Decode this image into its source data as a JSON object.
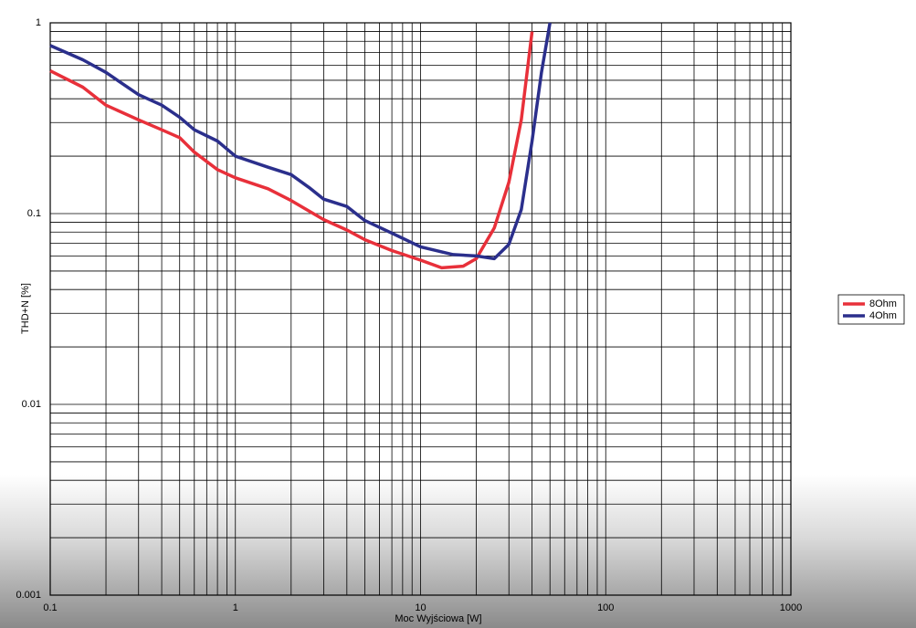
{
  "chart_data": {
    "type": "line",
    "x_label": "Moc Wyjściowa [W]",
    "y_label": "THD+N [%]",
    "x_scale": "log",
    "y_scale": "log",
    "xlim": [
      0.1,
      1000
    ],
    "xticks": [
      0.1,
      1,
      10,
      100,
      1000
    ],
    "ylim": [
      0.001,
      1
    ],
    "yticks": [
      0.001,
      0.01,
      0.1,
      1
    ],
    "grid": true,
    "minor_grid": true,
    "legend": "right",
    "series": [
      {
        "name": "8Ohm",
        "color": "#e8303a",
        "x": [
          0.1,
          0.15,
          0.2,
          0.3,
          0.4,
          0.5,
          0.6,
          0.8,
          1,
          1.5,
          2,
          3,
          4,
          5,
          7,
          10,
          13,
          17,
          20,
          25,
          30,
          35,
          40
        ],
        "values": [
          0.56,
          0.46,
          0.37,
          0.31,
          0.275,
          0.25,
          0.21,
          0.17,
          0.154,
          0.135,
          0.117,
          0.093,
          0.082,
          0.073,
          0.064,
          0.057,
          0.052,
          0.053,
          0.058,
          0.084,
          0.146,
          0.31,
          0.9
        ]
      },
      {
        "name": "4Ohm",
        "color": "#2b2f8c",
        "x": [
          0.1,
          0.15,
          0.2,
          0.3,
          0.4,
          0.5,
          0.6,
          0.8,
          1,
          1.5,
          2,
          2.5,
          3,
          4,
          5,
          7,
          10,
          15,
          20,
          25,
          30,
          35,
          40,
          45,
          50
        ],
        "values": [
          0.76,
          0.64,
          0.55,
          0.42,
          0.37,
          0.32,
          0.275,
          0.24,
          0.2,
          0.175,
          0.16,
          0.137,
          0.119,
          0.109,
          0.092,
          0.079,
          0.067,
          0.061,
          0.06,
          0.058,
          0.069,
          0.105,
          0.24,
          0.55,
          1
        ]
      }
    ]
  }
}
